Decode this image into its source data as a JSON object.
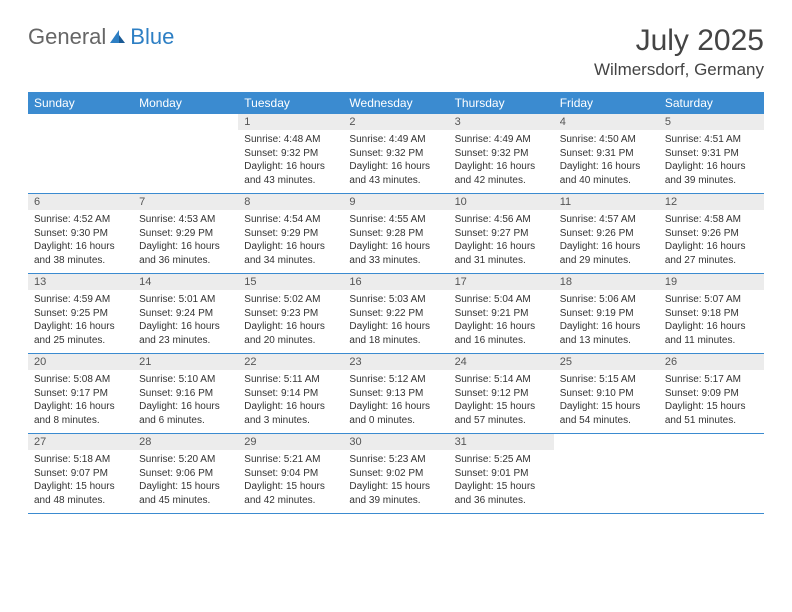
{
  "brand": {
    "part1": "General",
    "part2": "Blue"
  },
  "title": "July 2025",
  "location": "Wilmersdorf, Germany",
  "colors": {
    "header_bg": "#3b8bd0",
    "header_text": "#ffffff",
    "daynum_bg": "#ececec",
    "border": "#3b8bd0",
    "text": "#333333",
    "brand_gray": "#666666",
    "brand_blue": "#2d7fc4"
  },
  "weekdays": [
    "Sunday",
    "Monday",
    "Tuesday",
    "Wednesday",
    "Thursday",
    "Friday",
    "Saturday"
  ],
  "weeks": [
    [
      {
        "empty": true
      },
      {
        "empty": true
      },
      {
        "num": "1",
        "sunrise": "Sunrise: 4:48 AM",
        "sunset": "Sunset: 9:32 PM",
        "daylight": "Daylight: 16 hours and 43 minutes."
      },
      {
        "num": "2",
        "sunrise": "Sunrise: 4:49 AM",
        "sunset": "Sunset: 9:32 PM",
        "daylight": "Daylight: 16 hours and 43 minutes."
      },
      {
        "num": "3",
        "sunrise": "Sunrise: 4:49 AM",
        "sunset": "Sunset: 9:32 PM",
        "daylight": "Daylight: 16 hours and 42 minutes."
      },
      {
        "num": "4",
        "sunrise": "Sunrise: 4:50 AM",
        "sunset": "Sunset: 9:31 PM",
        "daylight": "Daylight: 16 hours and 40 minutes."
      },
      {
        "num": "5",
        "sunrise": "Sunrise: 4:51 AM",
        "sunset": "Sunset: 9:31 PM",
        "daylight": "Daylight: 16 hours and 39 minutes."
      }
    ],
    [
      {
        "num": "6",
        "sunrise": "Sunrise: 4:52 AM",
        "sunset": "Sunset: 9:30 PM",
        "daylight": "Daylight: 16 hours and 38 minutes."
      },
      {
        "num": "7",
        "sunrise": "Sunrise: 4:53 AM",
        "sunset": "Sunset: 9:29 PM",
        "daylight": "Daylight: 16 hours and 36 minutes."
      },
      {
        "num": "8",
        "sunrise": "Sunrise: 4:54 AM",
        "sunset": "Sunset: 9:29 PM",
        "daylight": "Daylight: 16 hours and 34 minutes."
      },
      {
        "num": "9",
        "sunrise": "Sunrise: 4:55 AM",
        "sunset": "Sunset: 9:28 PM",
        "daylight": "Daylight: 16 hours and 33 minutes."
      },
      {
        "num": "10",
        "sunrise": "Sunrise: 4:56 AM",
        "sunset": "Sunset: 9:27 PM",
        "daylight": "Daylight: 16 hours and 31 minutes."
      },
      {
        "num": "11",
        "sunrise": "Sunrise: 4:57 AM",
        "sunset": "Sunset: 9:26 PM",
        "daylight": "Daylight: 16 hours and 29 minutes."
      },
      {
        "num": "12",
        "sunrise": "Sunrise: 4:58 AM",
        "sunset": "Sunset: 9:26 PM",
        "daylight": "Daylight: 16 hours and 27 minutes."
      }
    ],
    [
      {
        "num": "13",
        "sunrise": "Sunrise: 4:59 AM",
        "sunset": "Sunset: 9:25 PM",
        "daylight": "Daylight: 16 hours and 25 minutes."
      },
      {
        "num": "14",
        "sunrise": "Sunrise: 5:01 AM",
        "sunset": "Sunset: 9:24 PM",
        "daylight": "Daylight: 16 hours and 23 minutes."
      },
      {
        "num": "15",
        "sunrise": "Sunrise: 5:02 AM",
        "sunset": "Sunset: 9:23 PM",
        "daylight": "Daylight: 16 hours and 20 minutes."
      },
      {
        "num": "16",
        "sunrise": "Sunrise: 5:03 AM",
        "sunset": "Sunset: 9:22 PM",
        "daylight": "Daylight: 16 hours and 18 minutes."
      },
      {
        "num": "17",
        "sunrise": "Sunrise: 5:04 AM",
        "sunset": "Sunset: 9:21 PM",
        "daylight": "Daylight: 16 hours and 16 minutes."
      },
      {
        "num": "18",
        "sunrise": "Sunrise: 5:06 AM",
        "sunset": "Sunset: 9:19 PM",
        "daylight": "Daylight: 16 hours and 13 minutes."
      },
      {
        "num": "19",
        "sunrise": "Sunrise: 5:07 AM",
        "sunset": "Sunset: 9:18 PM",
        "daylight": "Daylight: 16 hours and 11 minutes."
      }
    ],
    [
      {
        "num": "20",
        "sunrise": "Sunrise: 5:08 AM",
        "sunset": "Sunset: 9:17 PM",
        "daylight": "Daylight: 16 hours and 8 minutes."
      },
      {
        "num": "21",
        "sunrise": "Sunrise: 5:10 AM",
        "sunset": "Sunset: 9:16 PM",
        "daylight": "Daylight: 16 hours and 6 minutes."
      },
      {
        "num": "22",
        "sunrise": "Sunrise: 5:11 AM",
        "sunset": "Sunset: 9:14 PM",
        "daylight": "Daylight: 16 hours and 3 minutes."
      },
      {
        "num": "23",
        "sunrise": "Sunrise: 5:12 AM",
        "sunset": "Sunset: 9:13 PM",
        "daylight": "Daylight: 16 hours and 0 minutes."
      },
      {
        "num": "24",
        "sunrise": "Sunrise: 5:14 AM",
        "sunset": "Sunset: 9:12 PM",
        "daylight": "Daylight: 15 hours and 57 minutes."
      },
      {
        "num": "25",
        "sunrise": "Sunrise: 5:15 AM",
        "sunset": "Sunset: 9:10 PM",
        "daylight": "Daylight: 15 hours and 54 minutes."
      },
      {
        "num": "26",
        "sunrise": "Sunrise: 5:17 AM",
        "sunset": "Sunset: 9:09 PM",
        "daylight": "Daylight: 15 hours and 51 minutes."
      }
    ],
    [
      {
        "num": "27",
        "sunrise": "Sunrise: 5:18 AM",
        "sunset": "Sunset: 9:07 PM",
        "daylight": "Daylight: 15 hours and 48 minutes."
      },
      {
        "num": "28",
        "sunrise": "Sunrise: 5:20 AM",
        "sunset": "Sunset: 9:06 PM",
        "daylight": "Daylight: 15 hours and 45 minutes."
      },
      {
        "num": "29",
        "sunrise": "Sunrise: 5:21 AM",
        "sunset": "Sunset: 9:04 PM",
        "daylight": "Daylight: 15 hours and 42 minutes."
      },
      {
        "num": "30",
        "sunrise": "Sunrise: 5:23 AM",
        "sunset": "Sunset: 9:02 PM",
        "daylight": "Daylight: 15 hours and 39 minutes."
      },
      {
        "num": "31",
        "sunrise": "Sunrise: 5:25 AM",
        "sunset": "Sunset: 9:01 PM",
        "daylight": "Daylight: 15 hours and 36 minutes."
      },
      {
        "empty": true
      },
      {
        "empty": true
      }
    ]
  ]
}
